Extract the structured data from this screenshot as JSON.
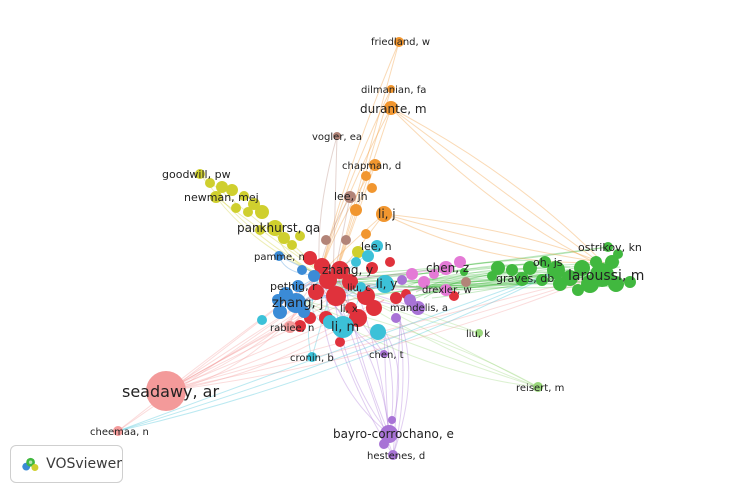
{
  "app": {
    "logo_text": "VOSviewer",
    "logo_icon": "vosviewer-logo-icon"
  },
  "cluster_colors": {
    "red": "#e0323c",
    "green": "#41b83f",
    "blue": "#3b8bd6",
    "yellow": "#cfcf2e",
    "purple": "#a873d6",
    "cyan": "#3cc1d8",
    "orange": "#f1962f",
    "brown": "#b28478",
    "pink": "#e47ad6",
    "salmon": "#f39a9a",
    "lightgreen": "#9ad67c"
  },
  "network": {
    "labels": [
      {
        "id": "friedland",
        "text": "friedland, w"
      },
      {
        "id": "dilmanian",
        "text": "dilmanian, fa"
      },
      {
        "id": "durante",
        "text": "durante, m"
      },
      {
        "id": "vogler",
        "text": "vogler, ea"
      },
      {
        "id": "chapman",
        "text": "chapman, d"
      },
      {
        "id": "goodwill",
        "text": "goodwill, pw"
      },
      {
        "id": "newman",
        "text": "newman, mej"
      },
      {
        "id": "lee_jh",
        "text": "lee, jh"
      },
      {
        "id": "li_j",
        "text": "li, j"
      },
      {
        "id": "pankhurst",
        "text": "pankhurst, qa"
      },
      {
        "id": "lee_h",
        "text": "lee, h"
      },
      {
        "id": "pamme",
        "text": "pamme, n"
      },
      {
        "id": "zhang_y",
        "text": "zhang, y"
      },
      {
        "id": "chen_z",
        "text": "chen, z"
      },
      {
        "id": "ostrikov",
        "text": "ostrikov, kn"
      },
      {
        "id": "oh_js",
        "text": "oh, js"
      },
      {
        "id": "laroussi",
        "text": "laroussi, m"
      },
      {
        "id": "graves",
        "text": "graves, db"
      },
      {
        "id": "pethig",
        "text": "pethig, r"
      },
      {
        "id": "liu_c",
        "text": "liu, c"
      },
      {
        "id": "li_y",
        "text": "li, y"
      },
      {
        "id": "drexler",
        "text": "drexler, w"
      },
      {
        "id": "zhang_j",
        "text": "zhang, j"
      },
      {
        "id": "li_x",
        "text": "li, x"
      },
      {
        "id": "mandelis",
        "text": "mandelis, a"
      },
      {
        "id": "rabiee",
        "text": "rabiee, n"
      },
      {
        "id": "li_m",
        "text": "li, m"
      },
      {
        "id": "liu_k",
        "text": "liu, k"
      },
      {
        "id": "cronin",
        "text": "cronin, b"
      },
      {
        "id": "chen_t",
        "text": "chen, t"
      },
      {
        "id": "seadawy",
        "text": "seadawy, ar"
      },
      {
        "id": "reisert",
        "text": "reisert, m"
      },
      {
        "id": "cheemaa",
        "text": "cheemaa, n"
      },
      {
        "id": "bayro",
        "text": "bayro-corrochano, e"
      },
      {
        "id": "hestenes",
        "text": "hestenes, d"
      }
    ]
  }
}
